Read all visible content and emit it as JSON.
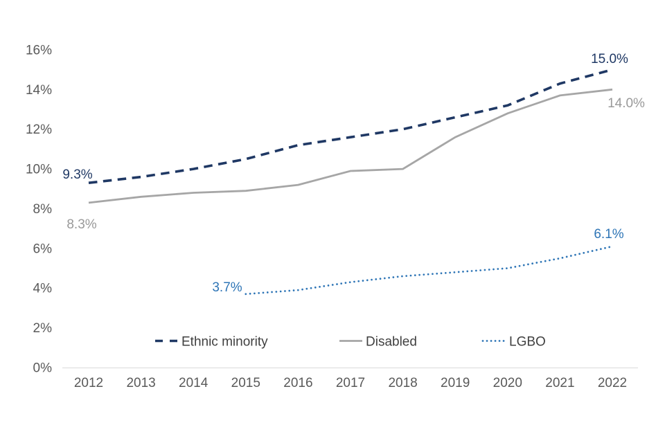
{
  "chart_data": {
    "type": "line",
    "title": "",
    "xlabel": "",
    "ylabel": "",
    "grid": false,
    "legend_position": "bottom-inside",
    "ylim": [
      0,
      16
    ],
    "y_tick_labels": [
      "16%",
      "14%",
      "12%",
      "10%",
      "8%",
      "6%",
      "4%",
      "2%",
      "0%"
    ],
    "y_tick_values": [
      16,
      14,
      12,
      10,
      8,
      6,
      4,
      2,
      0
    ],
    "categories": [
      "2012",
      "2013",
      "2014",
      "2015",
      "2016",
      "2017",
      "2018",
      "2019",
      "2020",
      "2021",
      "2022"
    ],
    "series": [
      {
        "name": "Ethnic minority",
        "style": "dashed",
        "color": "#1f3864",
        "values": [
          9.3,
          9.6,
          10.0,
          10.5,
          11.2,
          11.6,
          12.0,
          12.6,
          13.2,
          14.3,
          15.0
        ]
      },
      {
        "name": "Disabled",
        "style": "solid",
        "color": "#a6a6a6",
        "values": [
          8.3,
          8.6,
          8.8,
          8.9,
          9.2,
          9.9,
          10.0,
          11.6,
          12.8,
          13.7,
          14.0
        ]
      },
      {
        "name": "LGBO",
        "style": "dotted",
        "color": "#2e75b6",
        "values": [
          null,
          null,
          null,
          3.7,
          3.9,
          4.3,
          4.6,
          4.8,
          5.0,
          5.5,
          6.1
        ]
      }
    ],
    "annotations": [
      {
        "id": "ethnic-2012",
        "text": "9.3%",
        "color": "#1f3864"
      },
      {
        "id": "disabled-2012",
        "text": "8.3%",
        "color": "#999999"
      },
      {
        "id": "lgbo-2015",
        "text": "3.7%",
        "color": "#2e75b6"
      },
      {
        "id": "ethnic-2022",
        "text": "15.0%",
        "color": "#1f3864"
      },
      {
        "id": "disabled-2022",
        "text": "14.0%",
        "color": "#999999"
      },
      {
        "id": "lgbo-2022",
        "text": "6.1%",
        "color": "#2e75b6"
      }
    ]
  },
  "colors": {
    "background": "#ffffff",
    "axis_line": "#d9d9d9",
    "tick_label": "#595959",
    "legend_label": "#404040"
  }
}
